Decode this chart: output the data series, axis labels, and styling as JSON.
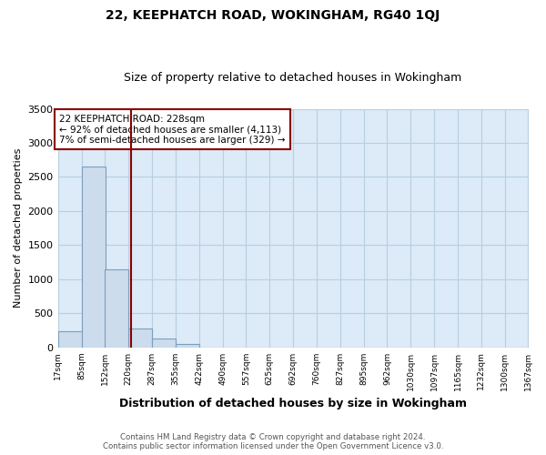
{
  "title1": "22, KEEPHATCH ROAD, WOKINGHAM, RG40 1QJ",
  "title2": "Size of property relative to detached houses in Wokingham",
  "xlabel": "Distribution of detached houses by size in Wokingham",
  "ylabel": "Number of detached properties",
  "annotation_line1": "22 KEEPHATCH ROAD: 228sqm",
  "annotation_line2": "← 92% of detached houses are smaller (4,113)",
  "annotation_line3": "7% of semi-detached houses are larger (329) →",
  "property_size_sqm": 228,
  "bin_edges": [
    17,
    85,
    152,
    220,
    287,
    355,
    422,
    490,
    557,
    625,
    692,
    760,
    827,
    895,
    962,
    1030,
    1097,
    1165,
    1232,
    1300,
    1367
  ],
  "bin_counts": [
    230,
    2650,
    1145,
    280,
    130,
    50,
    0,
    0,
    0,
    0,
    0,
    0,
    0,
    0,
    0,
    0,
    0,
    0,
    0,
    0
  ],
  "bar_color": "#ccdcec",
  "bar_edge_color": "#7a9fbf",
  "property_line_color": "#8b0000",
  "annotation_box_edge_color": "#8b0000",
  "background_color": "#ddeaf7",
  "grid_color": "#b8cfe0",
  "footer_line1": "Contains HM Land Registry data © Crown copyright and database right 2024.",
  "footer_line2": "Contains public sector information licensed under the Open Government Licence v3.0.",
  "ylim": [
    0,
    3500
  ],
  "yticks": [
    0,
    500,
    1000,
    1500,
    2000,
    2500,
    3000,
    3500
  ],
  "tick_labels": [
    "17sqm",
    "85sqm",
    "152sqm",
    "220sqm",
    "287sqm",
    "355sqm",
    "422sqm",
    "490sqm",
    "557sqm",
    "625sqm",
    "692sqm",
    "760sqm",
    "827sqm",
    "895sqm",
    "962sqm",
    "1030sqm",
    "1097sqm",
    "1165sqm",
    "1232sqm",
    "1300sqm",
    "1367sqm"
  ]
}
